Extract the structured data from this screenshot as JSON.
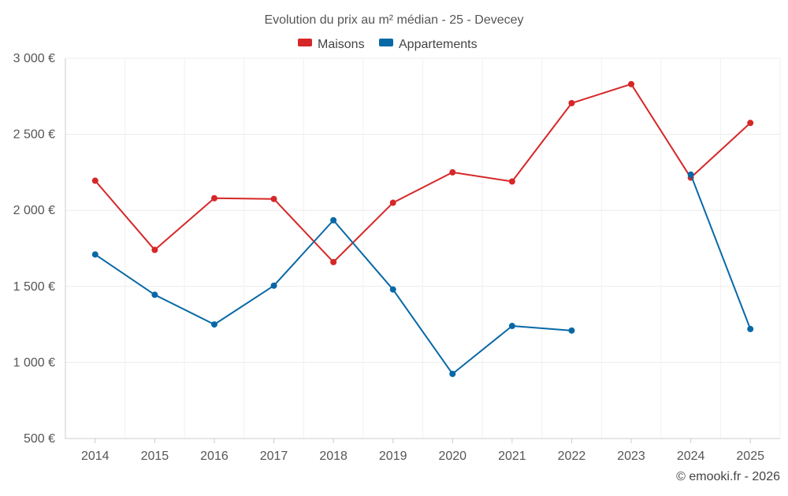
{
  "chart_data": {
    "type": "line",
    "title": "Evolution du prix au m² médian - 25 - Devecey",
    "credit": "© emooki.fr - 2026",
    "categories": [
      "2014",
      "2015",
      "2016",
      "2017",
      "2018",
      "2019",
      "2020",
      "2021",
      "2022",
      "2023",
      "2024",
      "2025"
    ],
    "series": [
      {
        "name": "Maisons",
        "color": "#d62728",
        "values": [
          2195,
          1740,
          2080,
          2075,
          1660,
          2050,
          2250,
          2190,
          2705,
          2830,
          2215,
          2575
        ]
      },
      {
        "name": "Appartements",
        "color": "#0868a6",
        "values": [
          1710,
          1445,
          1250,
          1505,
          1935,
          1480,
          925,
          1240,
          1210,
          null,
          2235,
          1220
        ]
      }
    ],
    "ylim": [
      500,
      3000
    ],
    "yticks": [
      500,
      1000,
      1500,
      2000,
      2500,
      3000
    ],
    "ytick_labels": [
      "500 €",
      "1 000 €",
      "1 500 €",
      "2 000 €",
      "2 500 €",
      "3 000 €"
    ],
    "legend_position": "top-center",
    "grid": true
  }
}
